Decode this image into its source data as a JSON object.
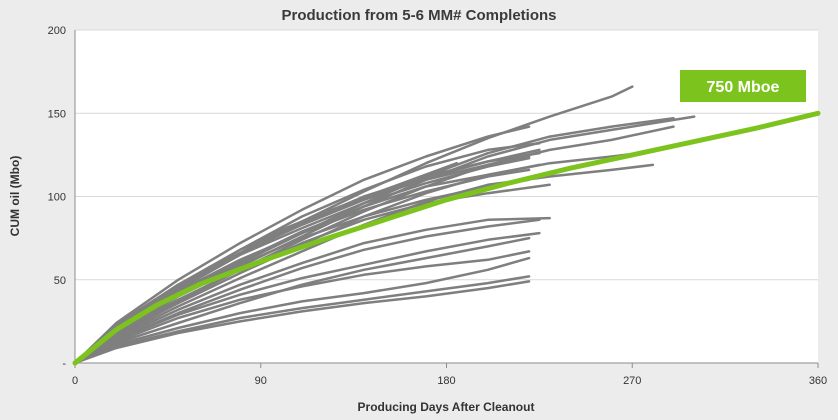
{
  "chart_data": {
    "type": "line",
    "title": "Production from 5-6 MM# Completions",
    "xlabel": "Producing Days After Cleanout",
    "ylabel": "CUM oil (Mbo)",
    "xlim": [
      0,
      360
    ],
    "ylim": [
      0,
      200
    ],
    "x_ticks": [
      0,
      90,
      180,
      270,
      360
    ],
    "y_ticks": [
      0,
      50,
      100,
      150,
      200
    ],
    "y_tick_labels": [
      "-",
      "50",
      "100",
      "150",
      "200"
    ],
    "grid": "horizontal",
    "colors": {
      "wells": "#7f7f7f",
      "type_curve": "#7dc31e",
      "plot_bg": "#ffffff",
      "page_bg": "#ececec"
    },
    "annotation": {
      "text": "750 Mboe"
    },
    "series": [
      {
        "role": "type-curve",
        "x": [
          0,
          20,
          40,
          60,
          90,
          120,
          150,
          180,
          210,
          240,
          270,
          300,
          330,
          360
        ],
        "y": [
          0,
          20,
          35,
          47,
          61,
          74,
          86,
          98,
          108,
          117,
          125,
          133,
          141,
          150
        ]
      },
      {
        "x": [
          0,
          20,
          50,
          80,
          110,
          140,
          170,
          200,
          230,
          260,
          270
        ],
        "y": [
          0,
          22,
          45,
          66,
          85,
          103,
          120,
          135,
          148,
          160,
          166
        ]
      },
      {
        "x": [
          0,
          20,
          50,
          80,
          110,
          140,
          170,
          200,
          220
        ],
        "y": [
          0,
          24,
          50,
          72,
          92,
          110,
          124,
          136,
          142
        ]
      },
      {
        "x": [
          0,
          20,
          50,
          80,
          110,
          140,
          170,
          200,
          230,
          260,
          290
        ],
        "y": [
          0,
          20,
          42,
          60,
          78,
          96,
          112,
          126,
          136,
          142,
          147
        ]
      },
      {
        "x": [
          0,
          20,
          50,
          80,
          110,
          140,
          170,
          200,
          230,
          260,
          300
        ],
        "y": [
          0,
          19,
          40,
          58,
          76,
          94,
          110,
          124,
          134,
          140,
          148
        ]
      },
      {
        "x": [
          0,
          20,
          50,
          80,
          110,
          140,
          170,
          200,
          230,
          260,
          290
        ],
        "y": [
          0,
          18,
          38,
          56,
          74,
          91,
          106,
          119,
          128,
          134,
          142
        ]
      },
      {
        "x": [
          0,
          20,
          50,
          80,
          110,
          140,
          170,
          200,
          230,
          260,
          280
        ],
        "y": [
          0,
          17,
          36,
          54,
          71,
          88,
          102,
          113,
          120,
          124,
          127
        ]
      },
      {
        "x": [
          0,
          20,
          50,
          80,
          110,
          140,
          170,
          200,
          230,
          260,
          280
        ],
        "y": [
          0,
          16,
          34,
          51,
          67,
          83,
          97,
          107,
          112,
          116,
          119
        ]
      },
      {
        "x": [
          0,
          20,
          50,
          80,
          110,
          140,
          170,
          200,
          225
        ],
        "y": [
          0,
          22,
          46,
          68,
          88,
          104,
          118,
          128,
          132
        ]
      },
      {
        "x": [
          0,
          20,
          50,
          80,
          110,
          140,
          170,
          200,
          225
        ],
        "y": [
          0,
          21,
          44,
          65,
          84,
          100,
          112,
          121,
          126
        ]
      },
      {
        "x": [
          0,
          20,
          50,
          80,
          110,
          140,
          170,
          200,
          225
        ],
        "y": [
          0,
          23,
          47,
          66,
          83,
          98,
          111,
          121,
          128
        ]
      },
      {
        "x": [
          0,
          20,
          50,
          80,
          110,
          140,
          170,
          200,
          220
        ],
        "y": [
          0,
          21,
          45,
          65,
          81,
          96,
          108,
          118,
          123
        ]
      },
      {
        "x": [
          0,
          20,
          50,
          80,
          110,
          140,
          170,
          200,
          220
        ],
        "y": [
          0,
          22,
          47,
          68,
          85,
          99,
          110,
          119,
          124
        ]
      },
      {
        "x": [
          0,
          20,
          50,
          80,
          110,
          140,
          170,
          200,
          225
        ],
        "y": [
          0,
          19,
          41,
          61,
          79,
          94,
          106,
          113,
          119
        ]
      },
      {
        "x": [
          0,
          20,
          50,
          80,
          100,
          120,
          150,
          185
        ],
        "y": [
          0,
          20,
          46,
          66,
          80,
          90,
          104,
          120
        ]
      },
      {
        "x": [
          0,
          20,
          50,
          80,
          110,
          140,
          170,
          200,
          220
        ],
        "y": [
          0,
          20,
          43,
          62,
          78,
          92,
          103,
          112,
          116
        ]
      },
      {
        "x": [
          0,
          20,
          50,
          80,
          110,
          140,
          170,
          200,
          220
        ],
        "y": [
          0,
          18,
          40,
          59,
          75,
          88,
          98,
          106,
          110
        ]
      },
      {
        "x": [
          0,
          20,
          50,
          80,
          110,
          140,
          170,
          200,
          230
        ],
        "y": [
          0,
          17,
          37,
          56,
          72,
          86,
          96,
          102,
          107
        ]
      },
      {
        "x": [
          0,
          20,
          50,
          80,
          110,
          140,
          170,
          200,
          230
        ],
        "y": [
          0,
          15,
          32,
          47,
          60,
          72,
          80,
          86,
          87
        ]
      },
      {
        "x": [
          0,
          20,
          50,
          80,
          110,
          140,
          170,
          200,
          225
        ],
        "y": [
          0,
          14,
          30,
          44,
          57,
          68,
          76,
          82,
          86
        ]
      },
      {
        "x": [
          0,
          20,
          50,
          80,
          110,
          140,
          170,
          200,
          225
        ],
        "y": [
          0,
          14,
          29,
          41,
          51,
          59,
          67,
          74,
          78
        ]
      },
      {
        "x": [
          0,
          20,
          50,
          80,
          110,
          140,
          170,
          200,
          220
        ],
        "y": [
          0,
          12,
          24,
          36,
          47,
          56,
          63,
          70,
          75
        ]
      },
      {
        "x": [
          0,
          20,
          50,
          80,
          110,
          140,
          170,
          200,
          220
        ],
        "y": [
          0,
          13,
          27,
          38,
          46,
          53,
          58,
          62,
          67
        ]
      },
      {
        "x": [
          0,
          20,
          50,
          80,
          110,
          140,
          170,
          200,
          220
        ],
        "y": [
          0,
          11,
          21,
          30,
          37,
          42,
          48,
          56,
          63
        ]
      },
      {
        "x": [
          0,
          20,
          50,
          80,
          110,
          140,
          170,
          200,
          220
        ],
        "y": [
          0,
          10,
          19,
          27,
          33,
          38,
          43,
          48,
          52
        ]
      },
      {
        "x": [
          0,
          20,
          50,
          80,
          110,
          140,
          170,
          200,
          220
        ],
        "y": [
          0,
          9,
          18,
          25,
          31,
          36,
          40,
          45,
          49
        ]
      }
    ]
  }
}
